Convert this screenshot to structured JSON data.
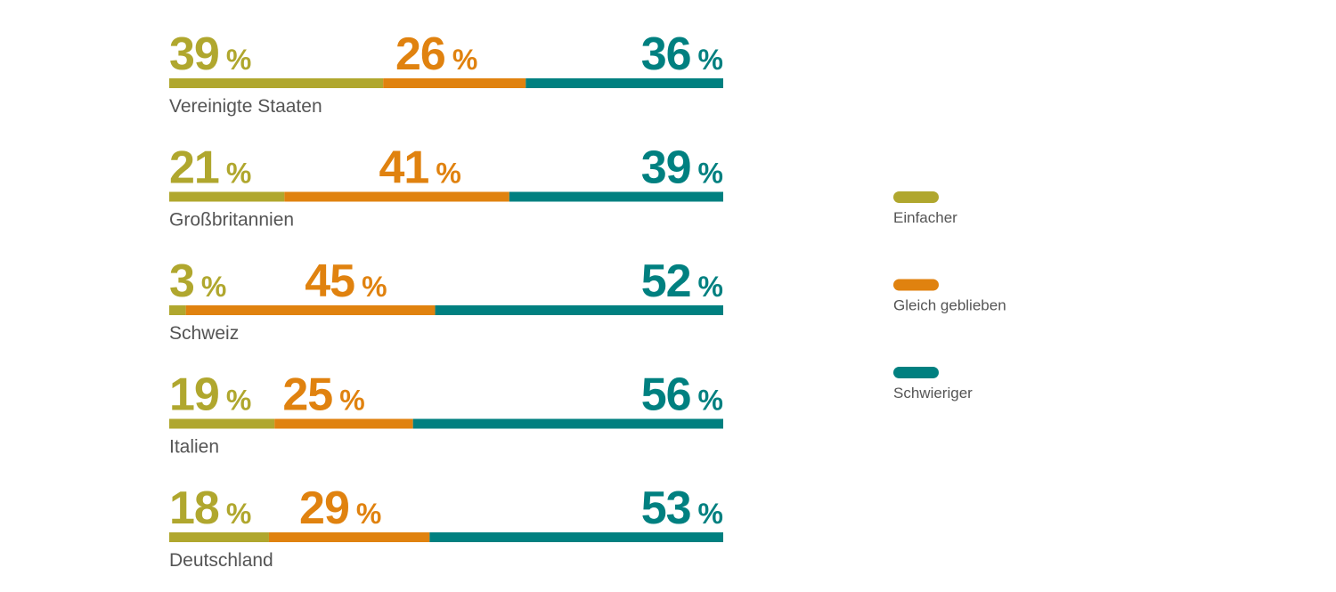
{
  "chart_data": {
    "type": "bar",
    "stacked": true,
    "orientation": "horizontal",
    "unit": "%",
    "categories": [
      "Vereinigte Staaten",
      "Großbritannien",
      "Schweiz",
      "Italien",
      "Deutschland"
    ],
    "series": [
      {
        "name": "Einfacher",
        "color": "#b0a72e",
        "values": [
          39,
          21,
          3,
          19,
          18
        ]
      },
      {
        "name": "Gleich geblieben",
        "color": "#e0820f",
        "values": [
          26,
          41,
          45,
          25,
          29
        ]
      },
      {
        "name": "Schwieriger",
        "color": "#008080",
        "values": [
          36,
          39,
          52,
          56,
          53
        ]
      }
    ],
    "legend": {
      "placement": "right"
    },
    "grid": false
  }
}
